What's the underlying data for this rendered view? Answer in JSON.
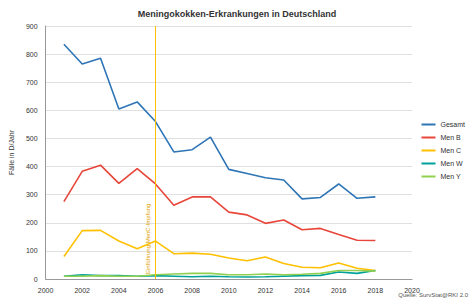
{
  "chart_data": {
    "type": "line",
    "title": "Meningokokken-Erkrankungen in Deutschland",
    "y_label": "Fälle in D/Jahr",
    "source": "Quelle: SurvStat@RKI 2.0",
    "annotations": [
      {
        "text": "Einführung MenC-Impfung",
        "x": 2006
      }
    ],
    "x": [
      2001,
      2002,
      2003,
      2004,
      2005,
      2006,
      2007,
      2008,
      2009,
      2010,
      2011,
      2012,
      2013,
      2014,
      2015,
      2016,
      2017,
      2018
    ],
    "series": [
      {
        "name": "Gesamt",
        "color": "#2e75b6",
        "values": [
          835,
          765,
          785,
          605,
          630,
          560,
          452,
          460,
          505,
          390,
          375,
          360,
          352,
          285,
          290,
          338,
          287,
          292
        ]
      },
      {
        "name": "Men B",
        "color": "#e8463a",
        "values": [
          275,
          383,
          405,
          340,
          393,
          338,
          262,
          292,
          292,
          238,
          228,
          198,
          210,
          175,
          180,
          158,
          138,
          137
        ]
      },
      {
        "name": "Men C",
        "color": "#ffc000",
        "values": [
          80,
          172,
          173,
          135,
          108,
          135,
          90,
          92,
          88,
          75,
          65,
          78,
          55,
          42,
          40,
          57,
          38,
          30
        ]
      },
      {
        "name": "Men W",
        "color": "#00a09a",
        "values": [
          10,
          15,
          12,
          12,
          10,
          12,
          10,
          8,
          10,
          8,
          7,
          8,
          10,
          12,
          13,
          25,
          20,
          30
        ]
      },
      {
        "name": "Men Y",
        "color": "#92d050",
        "values": [
          10,
          10,
          12,
          10,
          10,
          15,
          18,
          20,
          20,
          15,
          15,
          18,
          15,
          17,
          20,
          30,
          30,
          28
        ]
      }
    ],
    "xlim": [
      2000,
      2020
    ],
    "xticks": [
      2000,
      2002,
      2004,
      2006,
      2008,
      2010,
      2012,
      2014,
      2016,
      2018,
      2020
    ],
    "ylim": [
      0,
      900
    ],
    "yticks": [
      0,
      100,
      200,
      300,
      400,
      500,
      600,
      700,
      800,
      900
    ],
    "grid": true,
    "legend": "right"
  }
}
